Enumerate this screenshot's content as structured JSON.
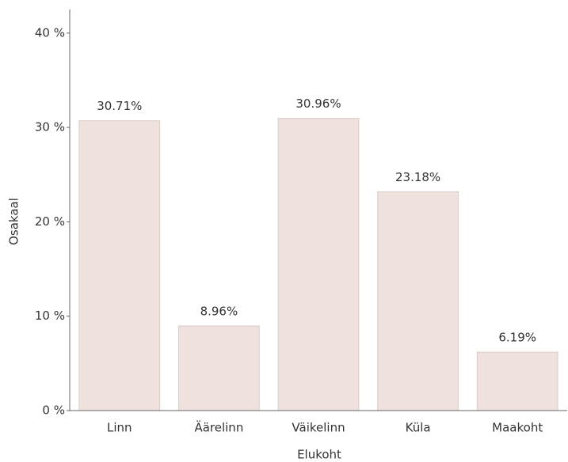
{
  "chart_data": {
    "type": "bar",
    "x_label": "Elukoht",
    "y_label": "Osakaal",
    "categories": [
      "Linn",
      "Äärelinn",
      "Väikelinn",
      "Küla",
      "Maakoht"
    ],
    "values": [
      30.71,
      8.96,
      30.96,
      23.18,
      6.19
    ],
    "value_labels": [
      "30.71%",
      "8.96%",
      "30.96%",
      "23.18%",
      "6.19%"
    ],
    "color": "#efe1dd",
    "ylim": [
      0,
      42.5
    ],
    "yticks": [
      {
        "value": 0,
        "label": "0 %"
      },
      {
        "value": 10,
        "label": "10 %"
      },
      {
        "value": 20,
        "label": "20 %"
      },
      {
        "value": 30,
        "label": "30 %"
      },
      {
        "value": 40,
        "label": "40 %"
      }
    ]
  }
}
